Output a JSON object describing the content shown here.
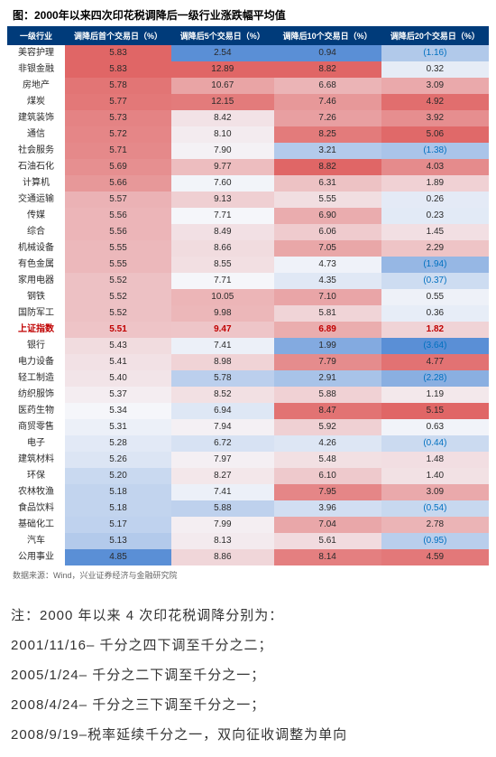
{
  "title": "图：2000年以来四次印花税调降后一级行业涨跌幅平均值",
  "source": "数据来源：Wind，兴业证券经济与金融研究院",
  "columns": [
    "一级行业",
    "调降后首个交易日（%）",
    "调降后5个交易日（%）",
    "调降后10个交易日（%）",
    "调降后20个交易日（%）"
  ],
  "highlight_row_index": 17,
  "rows": [
    {
      "label": "美容护理",
      "v": [
        5.83,
        2.54,
        0.94,
        -1.16
      ]
    },
    {
      "label": "非银金融",
      "v": [
        5.83,
        12.89,
        8.82,
        0.32
      ]
    },
    {
      "label": "房地产",
      "v": [
        5.78,
        10.67,
        6.68,
        3.09
      ]
    },
    {
      "label": "煤炭",
      "v": [
        5.77,
        12.15,
        7.46,
        4.92
      ]
    },
    {
      "label": "建筑装饰",
      "v": [
        5.73,
        8.42,
        7.26,
        3.92
      ]
    },
    {
      "label": "通信",
      "v": [
        5.72,
        8.1,
        8.25,
        5.06
      ]
    },
    {
      "label": "社会服务",
      "v": [
        5.71,
        7.9,
        3.21,
        -1.38
      ]
    },
    {
      "label": "石油石化",
      "v": [
        5.69,
        9.77,
        8.82,
        4.03
      ]
    },
    {
      "label": "计算机",
      "v": [
        5.66,
        7.6,
        6.31,
        1.89
      ]
    },
    {
      "label": "交通运输",
      "v": [
        5.57,
        9.13,
        5.55,
        0.26
      ]
    },
    {
      "label": "传媒",
      "v": [
        5.56,
        7.71,
        6.9,
        0.23
      ]
    },
    {
      "label": "综合",
      "v": [
        5.56,
        8.49,
        6.06,
        1.45
      ]
    },
    {
      "label": "机械设备",
      "v": [
        5.55,
        8.66,
        7.05,
        2.29
      ]
    },
    {
      "label": "有色金属",
      "v": [
        5.55,
        8.55,
        4.73,
        -1.94
      ]
    },
    {
      "label": "家用电器",
      "v": [
        5.52,
        7.71,
        4.35,
        -0.37
      ]
    },
    {
      "label": "钢铁",
      "v": [
        5.52,
        10.05,
        7.1,
        0.55
      ]
    },
    {
      "label": "国防军工",
      "v": [
        5.52,
        9.98,
        5.81,
        0.36
      ]
    },
    {
      "label": "上证指数",
      "v": [
        5.51,
        9.47,
        6.89,
        1.82
      ]
    },
    {
      "label": "银行",
      "v": [
        5.43,
        7.41,
        1.99,
        -3.64
      ]
    },
    {
      "label": "电力设备",
      "v": [
        5.41,
        8.98,
        7.79,
        4.77
      ]
    },
    {
      "label": "轻工制造",
      "v": [
        5.4,
        5.78,
        2.91,
        -2.28
      ]
    },
    {
      "label": "纺织服饰",
      "v": [
        5.37,
        8.52,
        5.88,
        1.19
      ]
    },
    {
      "label": "医药生物",
      "v": [
        5.34,
        6.94,
        8.47,
        5.15
      ]
    },
    {
      "label": "商贸零售",
      "v": [
        5.31,
        7.94,
        5.92,
        0.63
      ]
    },
    {
      "label": "电子",
      "v": [
        5.28,
        6.72,
        4.26,
        -0.44
      ]
    },
    {
      "label": "建筑材料",
      "v": [
        5.26,
        7.97,
        5.48,
        1.48
      ]
    },
    {
      "label": "环保",
      "v": [
        5.2,
        8.27,
        6.1,
        1.4
      ]
    },
    {
      "label": "农林牧渔",
      "v": [
        5.18,
        7.41,
        7.95,
        3.09
      ]
    },
    {
      "label": "食品饮料",
      "v": [
        5.18,
        5.88,
        3.96,
        -0.54
      ]
    },
    {
      "label": "基础化工",
      "v": [
        5.17,
        7.99,
        7.04,
        2.78
      ]
    },
    {
      "label": "汽车",
      "v": [
        5.13,
        8.13,
        5.61,
        -0.95
      ]
    },
    {
      "label": "公用事业",
      "v": [
        4.85,
        8.86,
        8.14,
        4.59
      ]
    }
  ],
  "note_lines": [
    "注：2000 年以来 4 次印花税调降分别为：",
    "2001/11/16– 千分之四下调至千分之二；",
    "2005/1/24– 千分之二下调至千分之一；",
    "2008/4/24– 千分之三下调至千分之一；",
    "2008/9/19–税率延续千分之一，双向征收调整为单向"
  ],
  "heat": {
    "palette_low": "#5a8fd6",
    "palette_mid": "#f5f6fa",
    "palette_high": "#e06666"
  }
}
